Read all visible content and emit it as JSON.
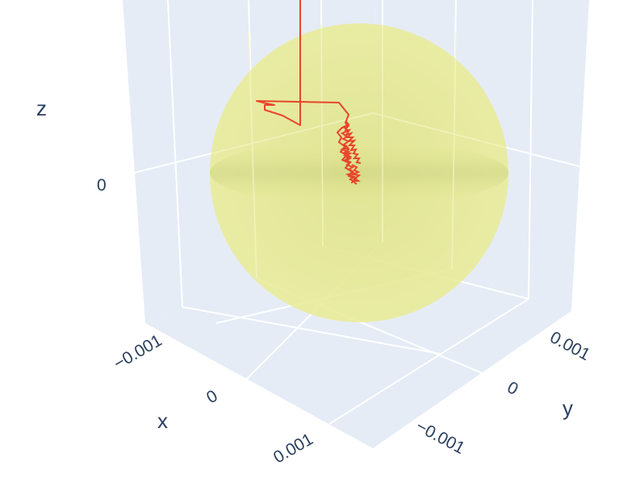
{
  "chart_data": {
    "type": "scatter3d",
    "title": "",
    "axes": {
      "x": {
        "title": "x",
        "ticks": [
          "−0.001",
          "0",
          "0.001"
        ]
      },
      "y": {
        "title": "y",
        "ticks": [
          "−0.001",
          "0",
          "0.001"
        ]
      },
      "z": {
        "title": "z",
        "ticks": [
          "0"
        ]
      }
    },
    "grid": true,
    "legend": "none",
    "colors": {
      "scene_background": "#e5ecf6",
      "gridline": "#ffffff",
      "sphere": "#e6ea8c",
      "trajectory": "#e8452c",
      "text": "#2a3f5f"
    },
    "series": [
      {
        "type": "surface-sphere",
        "color": "#e6ea8c",
        "opacity": 0.75
      },
      {
        "type": "line3d",
        "color": "#e8452c",
        "description_points": "random-walk trajectory"
      }
    ]
  }
}
